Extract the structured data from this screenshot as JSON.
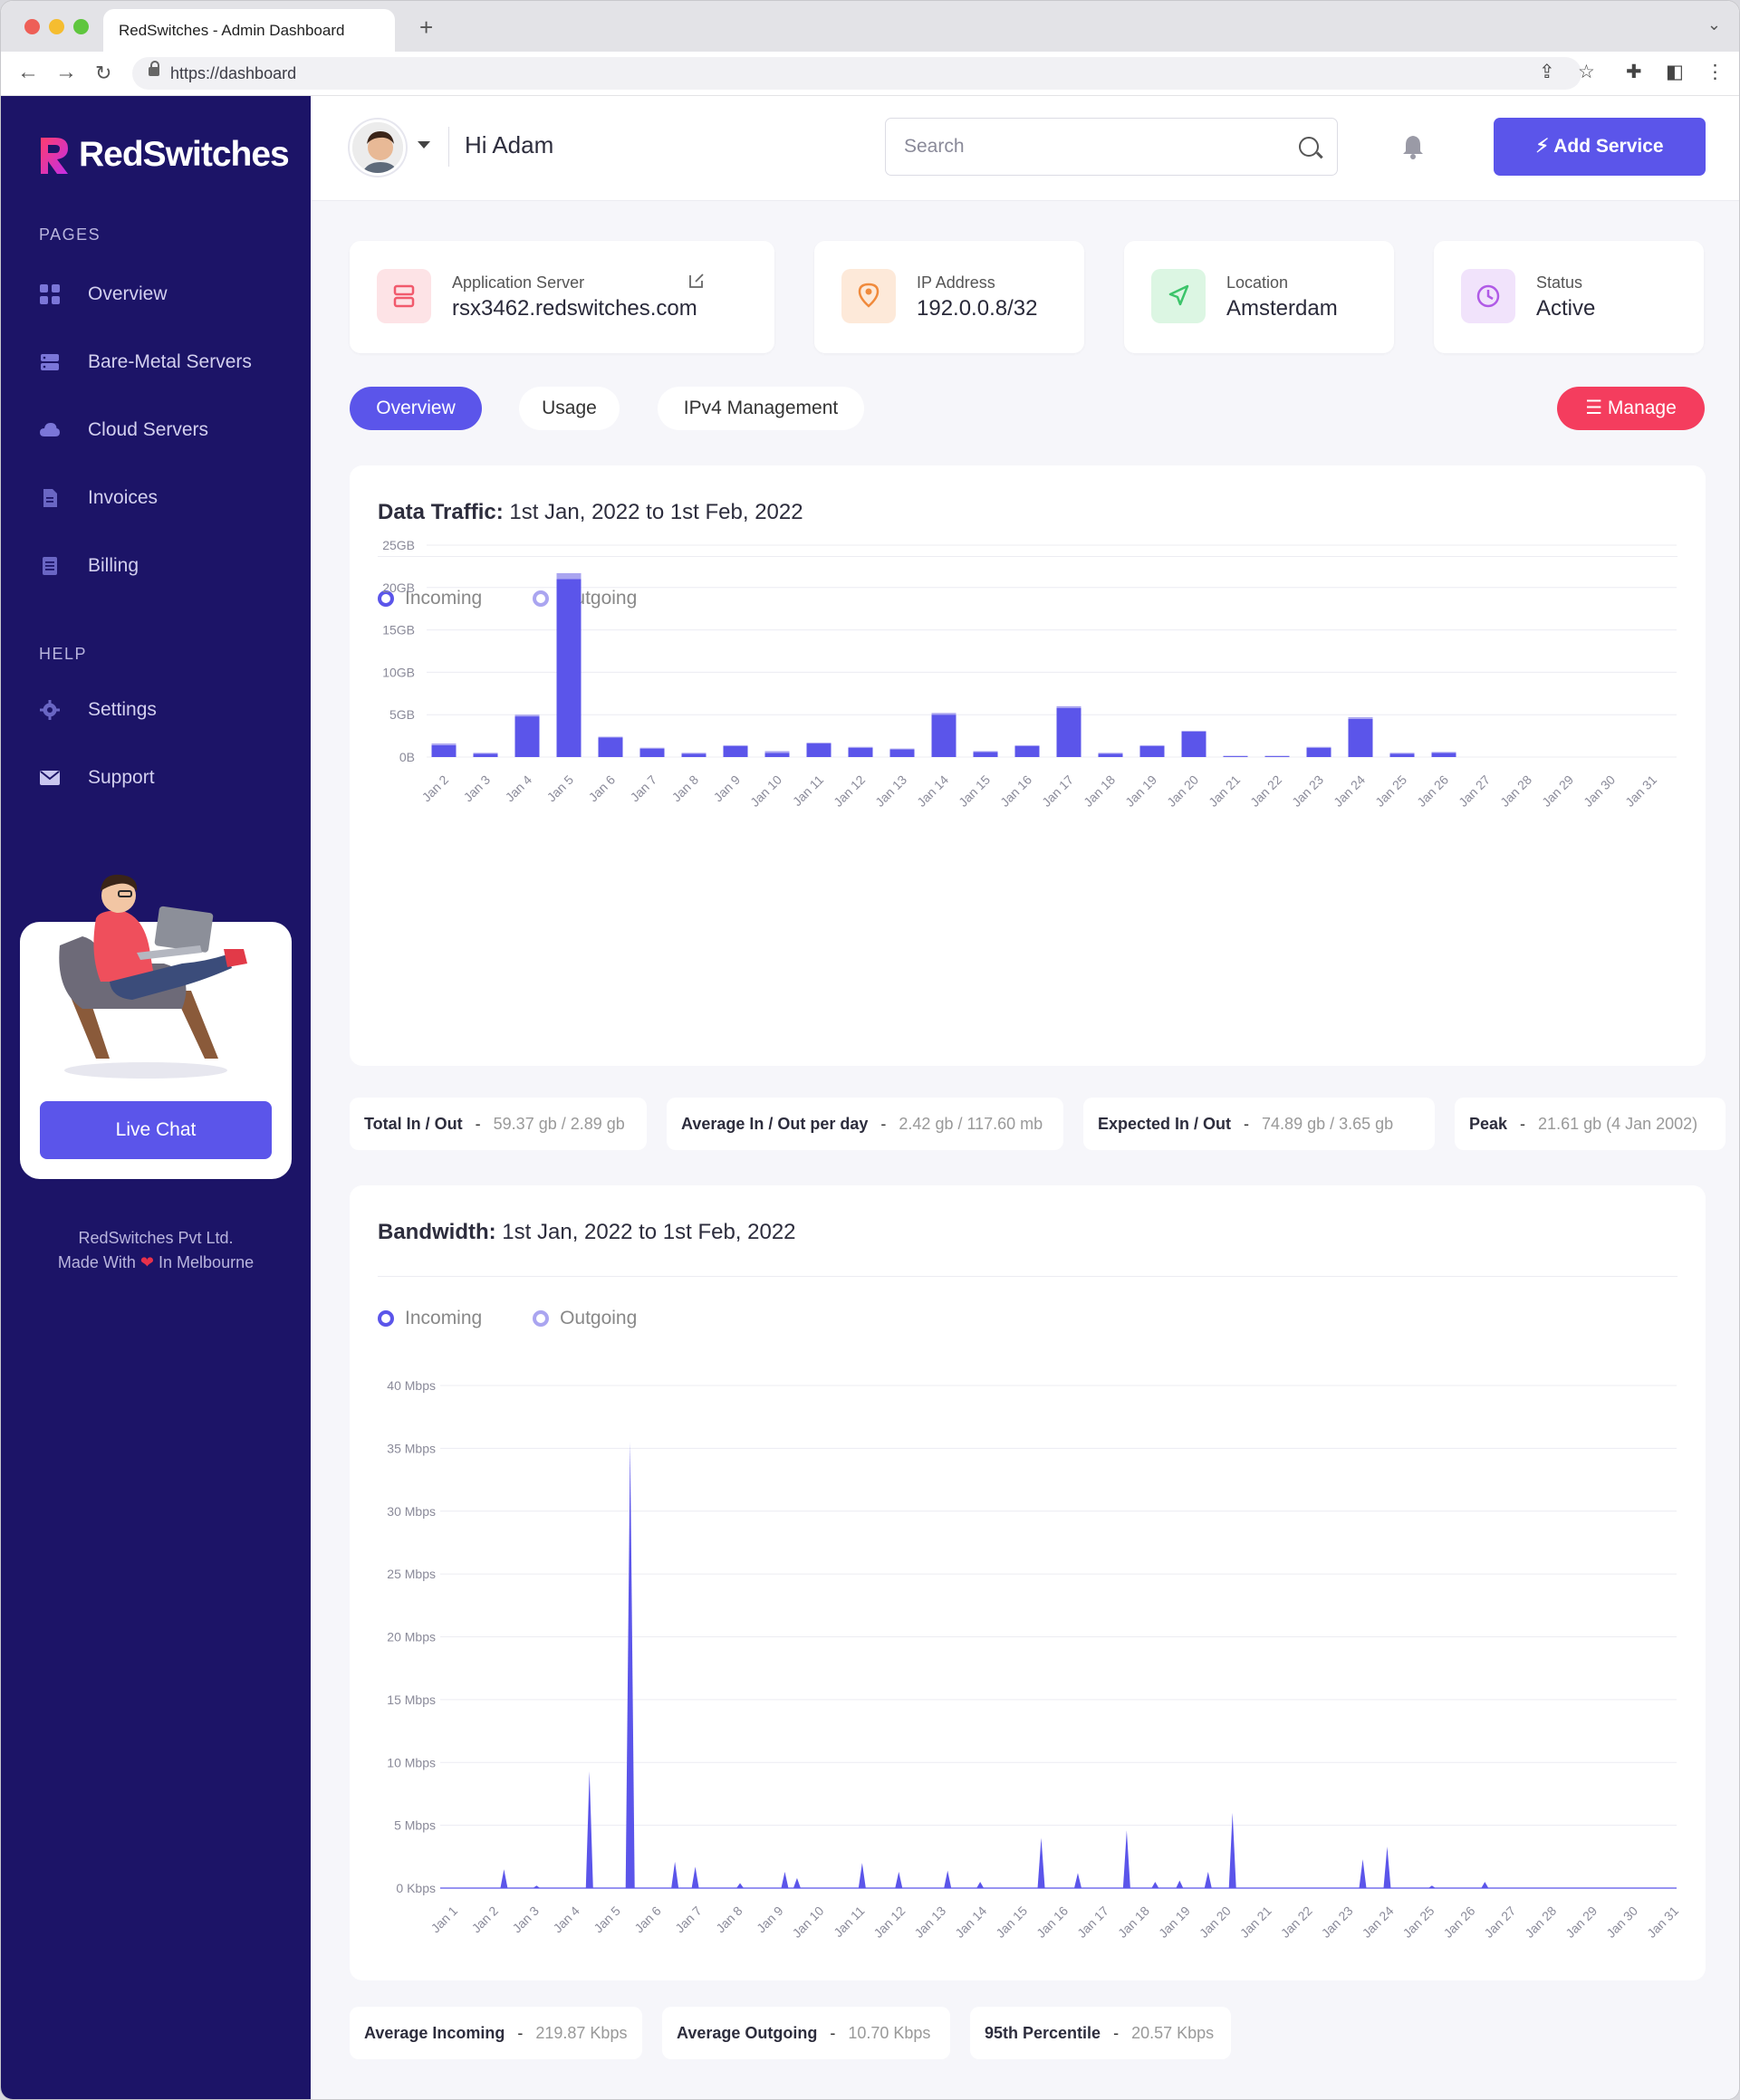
{
  "browser": {
    "tab_title": "RedSwitches - Admin Dashboard",
    "url": "https://dashboard"
  },
  "sidebar": {
    "logo": "RedSwitches",
    "pages_label": "PAGES",
    "pages": [
      {
        "label": "Overview",
        "icon": "grid-icon"
      },
      {
        "label": "Bare-Metal Servers",
        "icon": "server-icon"
      },
      {
        "label": "Cloud Servers",
        "icon": "cloud-icon"
      },
      {
        "label": "Invoices",
        "icon": "invoice-icon"
      },
      {
        "label": "Billing",
        "icon": "billing-icon"
      }
    ],
    "help_label": "HELP",
    "help": [
      {
        "label": "Settings",
        "icon": "gear-icon"
      },
      {
        "label": "Support",
        "icon": "mail-icon"
      }
    ],
    "live_chat": "Live Chat",
    "footer_line1": "RedSwitches Pvt Ltd.",
    "footer_line2_a": "Made With",
    "footer_line2_b": "In Melbourne"
  },
  "header": {
    "greeting": "Hi Adam",
    "search_placeholder": "Search",
    "add_service": "Add Service"
  },
  "info_cards": {
    "server": {
      "label": "Application Server",
      "value": "rsx3462.redswitches.com"
    },
    "ip": {
      "label": "IP Address",
      "value": "192.0.0.8/32"
    },
    "location": {
      "label": "Location",
      "value": "Amsterdam"
    },
    "status": {
      "label": "Status",
      "value": "Active"
    }
  },
  "tabs": [
    "Overview",
    "Usage",
    "IPv4 Management"
  ],
  "manage": "Manage",
  "traffic": {
    "title_bold": "Data Traffic:",
    "title_rest": " 1st Jan, 2022 to 1st Feb, 2022",
    "legend_in": "Incoming",
    "legend_out": "Outgoing",
    "stats": [
      {
        "k": "Total In / Out",
        "v": "59.37 gb / 2.89 gb"
      },
      {
        "k": "Average In / Out per day",
        "v": "2.42 gb / 117.60 mb"
      },
      {
        "k": "Expected In / Out",
        "v": "74.89 gb / 3.65 gb"
      },
      {
        "k": "Peak",
        "v": "21.61 gb (4 Jan 2002)"
      }
    ]
  },
  "bandwidth": {
    "title_bold": "Bandwidth:",
    "title_rest": " 1st Jan, 2022 to 1st Feb, 2022",
    "legend_in": "Incoming",
    "legend_out": "Outgoing",
    "stats": [
      {
        "k": "Average Incoming",
        "v": "219.87 Kbps"
      },
      {
        "k": "Average Outgoing",
        "v": "10.70 Kbps"
      },
      {
        "k": "95th Percentile",
        "v": "20.57 Kbps"
      }
    ]
  },
  "colors": {
    "accent": "#5b55ea",
    "accent_light": "#aaa5f0",
    "sidebar": "#1c1467",
    "red": "#f43d5e"
  },
  "chart_data": [
    {
      "type": "bar",
      "title": "Data Traffic: 1st Jan, 2022 to 1st Feb, 2022",
      "yticks": [
        "25GB",
        "20GB",
        "15GB",
        "10GB",
        "5GB",
        "0B"
      ],
      "ylim": [
        0,
        25
      ],
      "categories": [
        "Jan 2",
        "Jan 3",
        "Jan 4",
        "Jan 5",
        "Jan 6",
        "Jan 7",
        "Jan 8",
        "Jan 9",
        "Jan 10",
        "Jan 11",
        "Jan 12",
        "Jan 13",
        "Jan 14",
        "Jan 15",
        "Jan 16",
        "Jan 17",
        "Jan 18",
        "Jan 19",
        "Jan 20",
        "Jan 21",
        "Jan 22",
        "Jan 23",
        "Jan 24",
        "Jan 25",
        "Jan 26",
        "Jan 27",
        "Jan 28",
        "Jan 29",
        "Jan 30",
        "Jan 31"
      ],
      "series": [
        {
          "name": "Incoming",
          "values": [
            1.4,
            0.4,
            4.8,
            21.0,
            2.3,
            1.0,
            0.4,
            1.3,
            0.5,
            1.6,
            1.1,
            0.9,
            5.0,
            0.6,
            1.3,
            5.8,
            0.4,
            1.3,
            3.0,
            0.1,
            0.1,
            1.1,
            4.5,
            0.4,
            0.5,
            0,
            0,
            0,
            0,
            0
          ]
        },
        {
          "name": "Outgoing",
          "values": [
            0.2,
            0.1,
            0.2,
            0.7,
            0.1,
            0.1,
            0.1,
            0.1,
            0.2,
            0.1,
            0.1,
            0.1,
            0.2,
            0.1,
            0.1,
            0.2,
            0.1,
            0.1,
            0.1,
            0.05,
            0.05,
            0.1,
            0.2,
            0.1,
            0.1,
            0,
            0,
            0,
            0,
            0
          ]
        }
      ]
    },
    {
      "type": "area",
      "title": "Bandwidth: 1st Jan, 2022 to 1st Feb, 2022",
      "yticks": [
        "40 Mbps",
        "35 Mbps",
        "30 Mbps",
        "25 Mbps",
        "20 Mbps",
        "15 Mbps",
        "10 Mbps",
        "5 Mbps",
        "0 Kbps"
      ],
      "ylim": [
        0,
        40
      ],
      "categories": [
        "Jan 1",
        "Jan 2",
        "Jan 3",
        "Jan 4",
        "Jan 5",
        "Jan 6",
        "Jan 7",
        "Jan 8",
        "Jan 9",
        "Jan 10",
        "Jan 11",
        "Jan 12",
        "Jan 13",
        "Jan 14",
        "Jan 15",
        "Jan 16",
        "Jan 17",
        "Jan 18",
        "Jan 19",
        "Jan 20",
        "Jan 21",
        "Jan 22",
        "Jan 23",
        "Jan 24",
        "Jan 25",
        "Jan 26",
        "Jan 27",
        "Jan 28",
        "Jan 29",
        "Jan 30",
        "Jan 31"
      ],
      "series": [
        {
          "name": "Incoming",
          "spikes": [
            [
              1.3,
              1.5
            ],
            [
              2.1,
              0.2
            ],
            [
              3.4,
              9.3
            ],
            [
              4.4,
              35.5
            ],
            [
              5.5,
              2.1
            ],
            [
              6.0,
              1.7
            ],
            [
              7.1,
              0.4
            ],
            [
              8.2,
              1.3
            ],
            [
              8.5,
              0.8
            ],
            [
              10.1,
              2.0
            ],
            [
              11.0,
              1.3
            ],
            [
              12.2,
              1.4
            ],
            [
              13.0,
              0.5
            ],
            [
              14.5,
              4.0
            ],
            [
              15.4,
              1.2
            ],
            [
              16.6,
              4.6
            ],
            [
              17.3,
              0.5
            ],
            [
              17.9,
              0.6
            ],
            [
              18.6,
              1.3
            ],
            [
              19.2,
              6.0
            ],
            [
              22.4,
              2.3
            ],
            [
              23.0,
              3.3
            ],
            [
              24.1,
              0.2
            ],
            [
              25.4,
              0.5
            ]
          ]
        }
      ]
    }
  ]
}
